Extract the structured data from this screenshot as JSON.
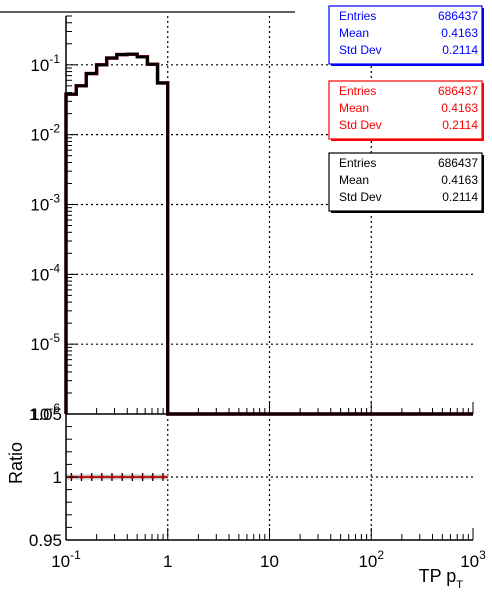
{
  "chart_data": [
    {
      "type": "line",
      "panel": "main",
      "x_scale": "log",
      "y_scale": "log",
      "xlim": [
        0.1,
        1000
      ],
      "ylim": [
        1e-06,
        0.5
      ],
      "grid": true,
      "xlabel": "",
      "ylabel": "",
      "y_tick_labels": [
        {
          "base": "10",
          "exp": "-1",
          "value": 0.1
        },
        {
          "base": "10",
          "exp": "-2",
          "value": 0.01
        },
        {
          "base": "10",
          "exp": "-3",
          "value": 0.001
        },
        {
          "base": "10",
          "exp": "-4",
          "value": 0.0001
        },
        {
          "base": "10",
          "exp": "-5",
          "value": 1e-05
        },
        {
          "base": "10",
          "exp": "-6",
          "value": 1e-06
        }
      ],
      "bin_edges": [
        0.1,
        0.126,
        0.158,
        0.2,
        0.251,
        0.316,
        0.398,
        0.501,
        0.631,
        0.794,
        1.0
      ],
      "series": [
        {
          "name": "",
          "color": "#0000ff",
          "values": [
            0.038,
            0.05,
            0.075,
            0.1,
            0.125,
            0.14,
            0.142,
            0.13,
            0.102,
            0.055
          ]
        },
        {
          "name": "",
          "color": "#ff0000",
          "values": [
            0.038,
            0.05,
            0.075,
            0.1,
            0.125,
            0.14,
            0.142,
            0.13,
            0.102,
            0.055
          ]
        },
        {
          "name": "",
          "color": "#000000",
          "values": [
            0.038,
            0.05,
            0.075,
            0.1,
            0.125,
            0.14,
            0.142,
            0.13,
            0.102,
            0.055
          ]
        }
      ],
      "stat_boxes": [
        {
          "color": "#0000ff",
          "rows": [
            {
              "label": "Entries",
              "value": "686437"
            },
            {
              "label": "Mean",
              "value": "0.4163"
            },
            {
              "label": "Std Dev",
              "value": "0.2114"
            }
          ]
        },
        {
          "color": "#ff0000",
          "rows": [
            {
              "label": "Entries",
              "value": "686437"
            },
            {
              "label": "Mean",
              "value": "0.4163"
            },
            {
              "label": "Std Dev",
              "value": "0.2114"
            }
          ]
        },
        {
          "color": "#000000",
          "rows": [
            {
              "label": "Entries",
              "value": "686437"
            },
            {
              "label": "Mean",
              "value": "0.4163"
            },
            {
              "label": "Std Dev",
              "value": "0.2114"
            }
          ]
        }
      ]
    },
    {
      "type": "scatter",
      "panel": "ratio",
      "x_scale": "log",
      "xlim": [
        0.1,
        1000
      ],
      "ylim": [
        0.95,
        1.05
      ],
      "grid": true,
      "ylabel": "Ratio",
      "xlabel_main": "TP p",
      "xlabel_sub": "T",
      "y_tick_labels": [
        "1.05",
        "1",
        "0.95"
      ],
      "x_tick_labels": [
        {
          "base": "10",
          "exp": "-1",
          "value": 0.1
        },
        {
          "base": "1",
          "exp": "",
          "value": 1
        },
        {
          "base": "10",
          "exp": "",
          "value": 10
        },
        {
          "base": "10",
          "exp": "2",
          "value": 100
        },
        {
          "base": "10",
          "exp": "3",
          "value": 1000
        }
      ],
      "points_x": [
        0.113,
        0.142,
        0.179,
        0.225,
        0.283,
        0.357,
        0.449,
        0.566,
        0.712,
        0.897
      ],
      "points_y": [
        1,
        1,
        1,
        1,
        1,
        1,
        1,
        1,
        1,
        1
      ],
      "band_color": "#c8c8c8",
      "marker_color": "#cc0000"
    }
  ]
}
